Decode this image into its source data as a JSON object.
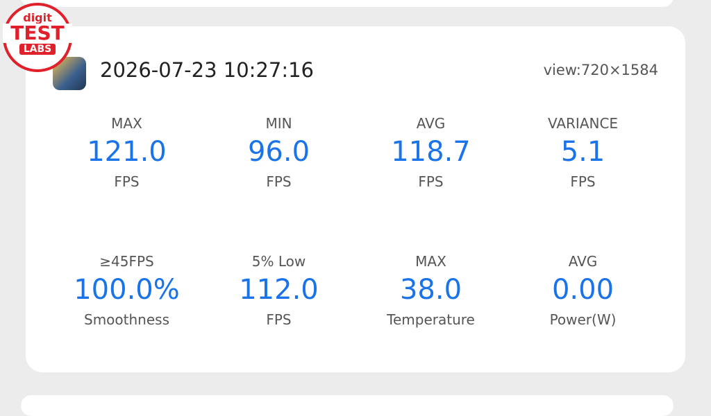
{
  "logo": {
    "line1": "digit",
    "line2": "TEST",
    "line3": "LABS"
  },
  "header": {
    "timestamp": "2026-07-23 10:27:16",
    "view": "view:720×1584"
  },
  "stats": [
    {
      "label": "MAX",
      "value": "121.0",
      "unit": "FPS"
    },
    {
      "label": "MIN",
      "value": "96.0",
      "unit": "FPS"
    },
    {
      "label": "AVG",
      "value": "118.7",
      "unit": "FPS"
    },
    {
      "label": "VARIANCE",
      "value": "5.1",
      "unit": "FPS"
    },
    {
      "label": "≥45FPS",
      "value": "100.0%",
      "unit": "Smoothness"
    },
    {
      "label": "5% Low",
      "value": "112.0",
      "unit": "FPS"
    },
    {
      "label": "MAX",
      "value": "38.0",
      "unit": "Temperature"
    },
    {
      "label": "AVG",
      "value": "0.00",
      "unit": "Power(W)"
    }
  ]
}
